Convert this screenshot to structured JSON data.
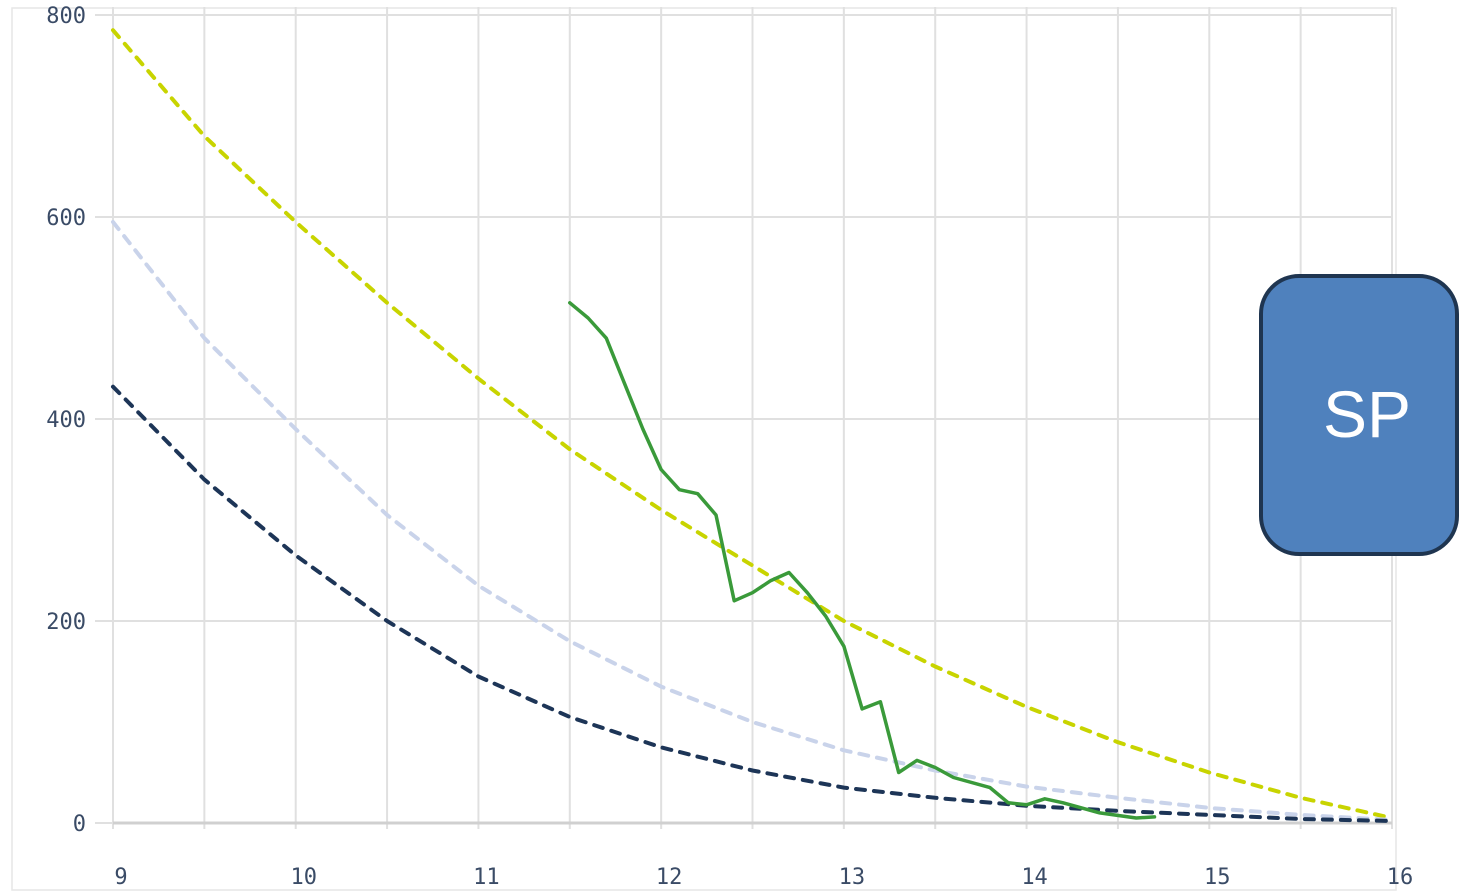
{
  "chart_data": {
    "type": "line",
    "xlim": [
      9,
      16
    ],
    "ylim": [
      0,
      800
    ],
    "x_ticks": [
      "9",
      "10",
      "11",
      "12",
      "13",
      "14",
      "15",
      "16"
    ],
    "y_ticks": [
      "0",
      "200",
      "400",
      "600",
      "800"
    ],
    "grid": true,
    "series": [
      {
        "style": "dashed",
        "color": "#c8d400",
        "points": [
          [
            9,
            785
          ],
          [
            9.5,
            680
          ],
          [
            10,
            595
          ],
          [
            10.5,
            515
          ],
          [
            11,
            440
          ],
          [
            11.5,
            370
          ],
          [
            12,
            310
          ],
          [
            12.5,
            255
          ],
          [
            13,
            200
          ],
          [
            13.5,
            155
          ],
          [
            14,
            115
          ],
          [
            14.5,
            80
          ],
          [
            15,
            50
          ],
          [
            15.5,
            25
          ],
          [
            16,
            5
          ]
        ]
      },
      {
        "style": "dashed",
        "color": "#c9d3ea",
        "points": [
          [
            9,
            595
          ],
          [
            9.5,
            480
          ],
          [
            10,
            390
          ],
          [
            10.5,
            305
          ],
          [
            11,
            235
          ],
          [
            11.5,
            180
          ],
          [
            12,
            135
          ],
          [
            12.5,
            100
          ],
          [
            13,
            72
          ],
          [
            13.5,
            52
          ],
          [
            14,
            36
          ],
          [
            14.5,
            25
          ],
          [
            15,
            15
          ],
          [
            15.5,
            8
          ],
          [
            16,
            3
          ]
        ]
      },
      {
        "style": "dashed",
        "color": "#1d3557",
        "points": [
          [
            9,
            432
          ],
          [
            9.5,
            340
          ],
          [
            10,
            265
          ],
          [
            10.5,
            200
          ],
          [
            11,
            145
          ],
          [
            11.5,
            105
          ],
          [
            12,
            75
          ],
          [
            12.5,
            52
          ],
          [
            13,
            35
          ],
          [
            13.5,
            25
          ],
          [
            14,
            17
          ],
          [
            14.5,
            12
          ],
          [
            15,
            8
          ],
          [
            15.5,
            4
          ],
          [
            16,
            2
          ]
        ]
      },
      {
        "style": "solid",
        "color": "#3a9a3a",
        "points": [
          [
            11.5,
            515
          ],
          [
            11.6,
            500
          ],
          [
            11.7,
            480
          ],
          [
            11.8,
            435
          ],
          [
            11.9,
            390
          ],
          [
            12,
            350
          ],
          [
            12.1,
            330
          ],
          [
            12.2,
            326
          ],
          [
            12.3,
            305
          ],
          [
            12.4,
            220
          ],
          [
            12.5,
            228
          ],
          [
            12.6,
            240
          ],
          [
            12.7,
            248
          ],
          [
            12.8,
            228
          ],
          [
            12.9,
            205
          ],
          [
            13,
            175
          ],
          [
            13.1,
            113
          ],
          [
            13.2,
            120
          ],
          [
            13.3,
            50
          ],
          [
            13.4,
            62
          ],
          [
            13.5,
            55
          ],
          [
            13.6,
            45
          ],
          [
            13.8,
            35
          ],
          [
            13.9,
            20
          ],
          [
            14,
            18
          ],
          [
            14.1,
            24
          ],
          [
            14.2,
            20
          ],
          [
            14.4,
            10
          ],
          [
            14.6,
            5
          ],
          [
            14.7,
            6
          ]
        ]
      }
    ]
  },
  "callout": {
    "text": "SP",
    "background": "#4f81bd",
    "border": "#1f3550"
  }
}
